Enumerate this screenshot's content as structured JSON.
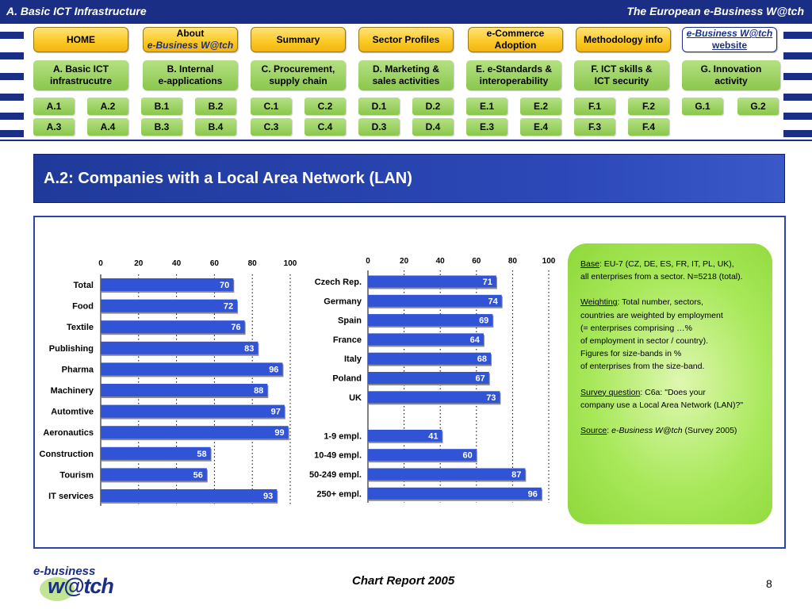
{
  "header": {
    "left_title": "A. Basic ICT Infrastructure",
    "right_title": "The European e-Business W@tch"
  },
  "nav": {
    "home": "HOME",
    "about_line1": "About",
    "about_line2": "e-Business W@tch",
    "summary": "Summary",
    "sector_profiles": "Sector Profiles",
    "ecommerce_line1": "e-Commerce",
    "ecommerce_line2": "Adoption",
    "methodology": "Methodology info",
    "website_line1": "e-Business W@tch",
    "website_line2": "website"
  },
  "sections": [
    {
      "line1": "A. Basic ICT",
      "line2": "infrastrucutre",
      "sub": [
        "A.1",
        "A.2",
        "A.3",
        "A.4"
      ]
    },
    {
      "line1": "B. Internal",
      "line2": "e-applications",
      "sub": [
        "B.1",
        "B.2",
        "B.3",
        "B.4"
      ]
    },
    {
      "line1": "C. Procurement,",
      "line2": "supply chain",
      "sub": [
        "C.1",
        "C.2",
        "C.3",
        "C.4"
      ]
    },
    {
      "line1": "D. Marketing &",
      "line2": "sales activities",
      "sub": [
        "D.1",
        "D.2",
        "D.3",
        "D.4"
      ]
    },
    {
      "line1": "E. e-Standards &",
      "line2": "interoperability",
      "sub": [
        "E.1",
        "E.2",
        "E.3",
        "E.4"
      ]
    },
    {
      "line1": "F. ICT skills &",
      "line2": "ICT security",
      "sub": [
        "F.1",
        "F.2",
        "F.3",
        "F.4"
      ]
    },
    {
      "line1": "G. Innovation",
      "line2": "activity",
      "sub": [
        "G.1",
        "G.2"
      ]
    }
  ],
  "page_title": "A.2: Companies with a Local Area Network (LAN)",
  "chart_data": [
    {
      "type": "bar",
      "orientation": "horizontal",
      "categories": [
        "Total",
        "Food",
        "Textile",
        "Publishing",
        "Pharma",
        "Machinery",
        "Automtive",
        "Aeronautics",
        "Construction",
        "Tourism",
        "IT services"
      ],
      "values": [
        70,
        72,
        76,
        83,
        96,
        88,
        97,
        99,
        58,
        56,
        93
      ],
      "xlim": [
        0,
        100
      ],
      "xticks": [
        0,
        20,
        40,
        60,
        80,
        100
      ],
      "bar_color": "#3153d6",
      "grid": "dotted vertical"
    },
    {
      "type": "bar",
      "orientation": "horizontal",
      "categories": [
        "Czech Rep.",
        "Germany",
        "Spain",
        "France",
        "Italy",
        "Poland",
        "UK",
        "",
        "1-9 empl.",
        "10-49 empl.",
        "50-249 empl.",
        "250+ empl."
      ],
      "values": [
        71,
        74,
        69,
        64,
        68,
        67,
        73,
        null,
        41,
        60,
        87,
        96
      ],
      "xlim": [
        0,
        100
      ],
      "xticks": [
        0,
        20,
        40,
        60,
        80,
        100
      ],
      "bar_color": "#3153d6",
      "grid": "dotted vertical"
    }
  ],
  "note": {
    "base_label": "Base",
    "base_text": ": EU-7 (CZ, DE, ES, FR, IT, PL, UK),",
    "base_line2": "all enterprises from a sector. N=5218 (total).",
    "weighting_label": "Weighting",
    "weighting_text": ": Total number, sectors,",
    "weighting_line2": "countries are weighted by employment",
    "weighting_line3": "(= enterprises comprising …%",
    "weighting_line4": "of employment in sector / country).",
    "weighting_line5": "Figures for size-bands in %",
    "weighting_line6": "of enterprises from the size-band.",
    "survey_label": "Survey question",
    "survey_text": ": C6a: \"Does your",
    "survey_line2": "company use a Local Area Network (LAN)?\"",
    "source_label": "Source",
    "source_italic": "e-Business W@tch",
    "source_text": " (Survey 2005)"
  },
  "footer": {
    "logo_line1": "e-business",
    "logo_line2": "w@tch",
    "report_title": "Chart Report 2005",
    "page_number": "8"
  }
}
